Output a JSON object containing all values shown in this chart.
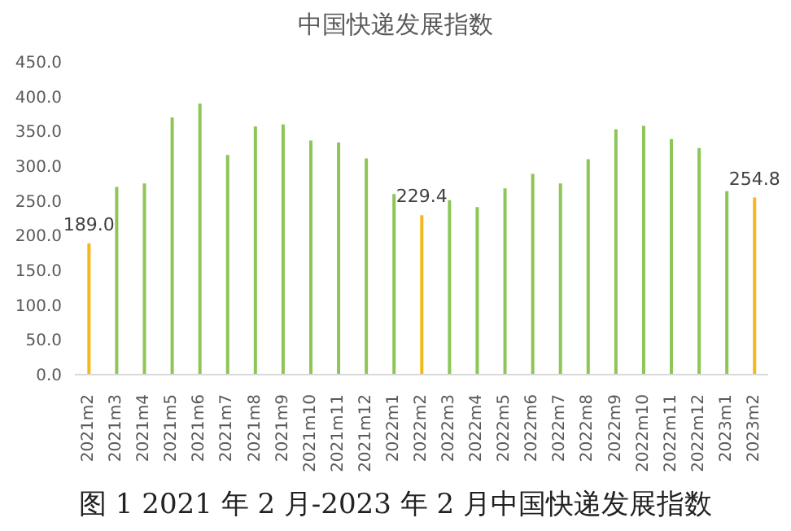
{
  "chart_data": {
    "type": "bar",
    "title": "中国快递发展指数",
    "categories": [
      "2021m2",
      "2021m3",
      "2021m4",
      "2021m5",
      "2021m6",
      "2021m7",
      "2021m8",
      "2021m9",
      "2021m10",
      "2021m11",
      "2021m12",
      "2022m1",
      "2022m2",
      "2022m3",
      "2022m4",
      "2022m5",
      "2022m6",
      "2022m7",
      "2022m8",
      "2022m9",
      "2022m10",
      "2022m11",
      "2022m12",
      "2023m1",
      "2023m2"
    ],
    "values": [
      189.0,
      270,
      275,
      370,
      390,
      316,
      357,
      360,
      337,
      334,
      311,
      260,
      229.4,
      251,
      241,
      268,
      289,
      275,
      310,
      353,
      358,
      339,
      326,
      264,
      254.8
    ],
    "colors": [
      "#f4b81c",
      "#8dc556",
      "#8dc556",
      "#8dc556",
      "#8dc556",
      "#8dc556",
      "#8dc556",
      "#8dc556",
      "#8dc556",
      "#8dc556",
      "#8dc556",
      "#8dc556",
      "#f4b81c",
      "#8dc556",
      "#8dc556",
      "#8dc556",
      "#8dc556",
      "#8dc556",
      "#8dc556",
      "#8dc556",
      "#8dc556",
      "#8dc556",
      "#8dc556",
      "#8dc556",
      "#f4b81c"
    ],
    "value_labels": [
      "189.0",
      null,
      null,
      null,
      null,
      null,
      null,
      null,
      null,
      null,
      null,
      null,
      "229.4",
      null,
      null,
      null,
      null,
      null,
      null,
      null,
      null,
      null,
      null,
      null,
      "254.8"
    ],
    "ylim": [
      0,
      450
    ],
    "yticks": [
      {
        "value": 0,
        "label": "0.0"
      },
      {
        "value": 50,
        "label": "50.0"
      },
      {
        "value": 100,
        "label": "100.0"
      },
      {
        "value": 150,
        "label": "150.0"
      },
      {
        "value": 200,
        "label": "200.0"
      },
      {
        "value": 250,
        "label": "250.0"
      },
      {
        "value": 300,
        "label": "300.0"
      },
      {
        "value": 350,
        "label": "350.0"
      },
      {
        "value": 400,
        "label": "400.0"
      },
      {
        "value": 450,
        "label": "450.0"
      }
    ],
    "grid": false,
    "legend": false,
    "annotations": [
      "图 1 2021 年 2 月-2023 年 2 月中国快递发展指数"
    ]
  }
}
